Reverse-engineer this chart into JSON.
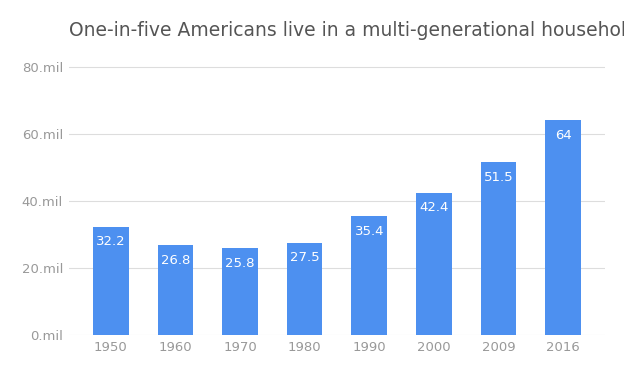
{
  "title": "One-in-five Americans live in a multi-generational household",
  "categories": [
    "1950",
    "1960",
    "1970",
    "1980",
    "1990",
    "2000",
    "2009",
    "2016"
  ],
  "values": [
    32.2,
    26.8,
    25.8,
    27.5,
    35.4,
    42.4,
    51.5,
    64.0
  ],
  "labels": [
    "32.2",
    "26.8",
    "25.8",
    "27.5",
    "35.4",
    "42.4",
    "51.5",
    "64"
  ],
  "bar_color": "#4d90f0",
  "label_color": "#ffffff",
  "title_color": "#555555",
  "axis_label_color": "#999999",
  "grid_color": "#dddddd",
  "background_color": "#ffffff",
  "ylim": [
    0,
    85
  ],
  "yticks": [
    0,
    20,
    40,
    60,
    80
  ],
  "ytick_labels": [
    "0.mil",
    "20.mil",
    "40.mil",
    "60.mil",
    "80.mil"
  ],
  "title_fontsize": 13.5,
  "tick_fontsize": 9.5,
  "label_fontsize": 9.5,
  "bar_width": 0.55
}
